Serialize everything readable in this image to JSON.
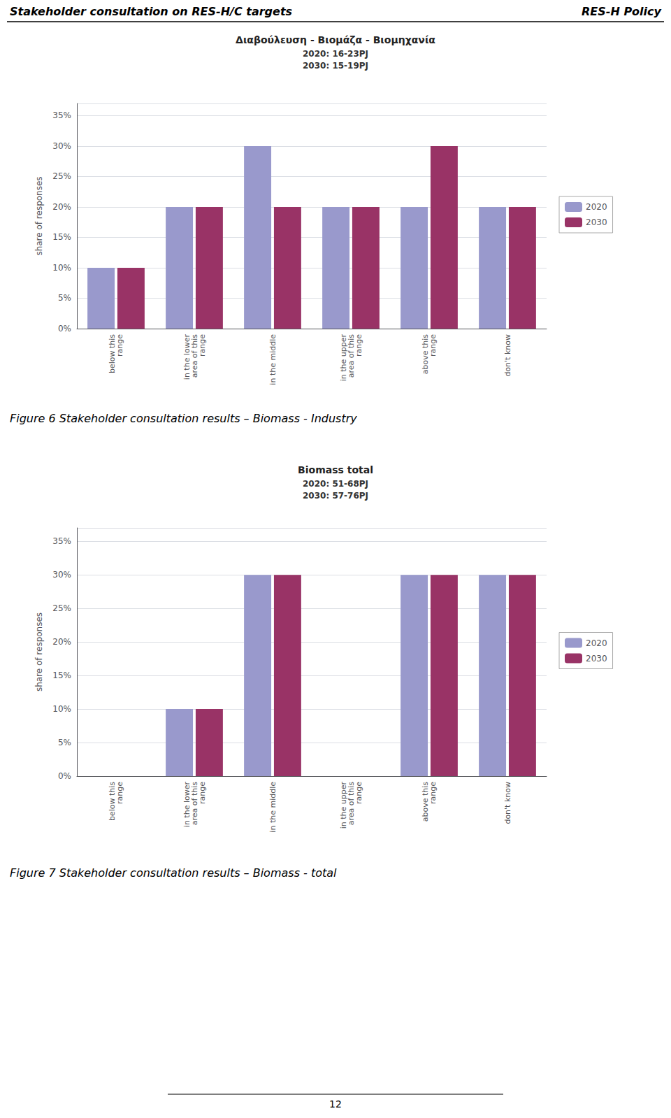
{
  "chart_data": [
    {
      "type": "bar",
      "title": "Διαβούλευση - Βιομάζα - Βιομηχανία",
      "subtitle": "2020: 16-23PJ\n2030: 15-19PJ",
      "categories": [
        "below this\nrange",
        "in the lower\narea of this\nrange",
        "in the middle",
        "in the upper\narea of this\nrange",
        "above this\nrange",
        "don't know"
      ],
      "series": [
        {
          "name": "2020",
          "color": "#9999CC",
          "values": [
            0.1,
            0.2,
            0.3,
            0.2,
            0.2,
            0.2
          ]
        },
        {
          "name": "2030",
          "color": "#993366",
          "values": [
            0.1,
            0.2,
            0.2,
            0.2,
            0.3,
            0.2
          ]
        }
      ],
      "ylabel": "share of responses",
      "ylim": [
        0,
        0.37
      ],
      "yticks": [
        {
          "value": 0,
          "label": "0%"
        },
        {
          "value": 0.05,
          "label": "5%"
        },
        {
          "value": 0.1,
          "label": "10%"
        },
        {
          "value": 0.15,
          "label": "15%"
        },
        {
          "value": 0.2,
          "label": "20%"
        },
        {
          "value": 0.25,
          "label": "25%"
        },
        {
          "value": 0.3,
          "label": "30%"
        },
        {
          "value": 0.35,
          "label": "35%"
        }
      ],
      "grid": true,
      "legend": "right",
      "annotations": [
        "Stakeholder consultation on RES-H/C targets",
        "RES-H Policy",
        "Figure 6 Stakeholder consultation results – Biomass - Industry"
      ]
    },
    {
      "type": "bar",
      "title": "Biomass total",
      "subtitle": "2020: 51-68PJ\n2030: 57-76PJ",
      "categories": [
        "below this\nrange",
        "in the lower\narea of this\nrange",
        "in the middle",
        "in the upper\narea of this\nrange",
        "above this\nrange",
        "don't know"
      ],
      "series": [
        {
          "name": "2020",
          "color": "#9999CC",
          "values": [
            0,
            0.1,
            0.3,
            0,
            0.3,
            0.3
          ]
        },
        {
          "name": "2030",
          "color": "#993366",
          "values": [
            0,
            0.1,
            0.3,
            0,
            0.3,
            0.3
          ]
        }
      ],
      "ylabel": "share of responses",
      "ylim": [
        0,
        0.37
      ],
      "yticks": [
        {
          "value": 0,
          "label": "0%"
        },
        {
          "value": 0.05,
          "label": "5%"
        },
        {
          "value": 0.1,
          "label": "10%"
        },
        {
          "value": 0.15,
          "label": "15%"
        },
        {
          "value": 0.2,
          "label": "20%"
        },
        {
          "value": 0.25,
          "label": "25%"
        },
        {
          "value": 0.3,
          "label": "30%"
        },
        {
          "value": 0.35,
          "label": "35%"
        }
      ],
      "grid": true,
      "legend": "right",
      "annotations": [
        "Figure 7 Stakeholder consultation results – Biomass - total",
        "12"
      ]
    }
  ]
}
